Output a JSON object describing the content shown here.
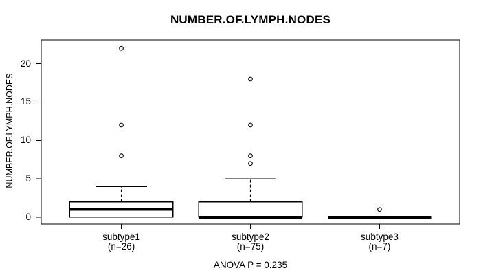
{
  "chart_data": {
    "type": "boxplot",
    "title": "NUMBER.OF.LYMPH.NODES",
    "ylabel": "NUMBER.OF.LYMPH.NODES",
    "annotation": "ANOVA P = 0.235",
    "y_ticks": [
      0,
      5,
      10,
      15,
      20
    ],
    "ylim": [
      -0.9,
      23.1
    ],
    "grid": false,
    "groups": [
      {
        "label": "subtype1",
        "n_label": "(n=26)",
        "n": 26,
        "stats": {
          "whisker_low": 0,
          "q1": 0,
          "median": 1,
          "q3": 2,
          "whisker_high": 4
        },
        "outliers": [
          8,
          12,
          22
        ]
      },
      {
        "label": "subtype2",
        "n_label": "(n=75)",
        "n": 75,
        "stats": {
          "whisker_low": 0,
          "q1": 0,
          "median": 0,
          "q3": 2,
          "whisker_high": 5
        },
        "outliers": [
          7,
          8,
          12,
          18
        ]
      },
      {
        "label": "subtype3",
        "n_label": "(n=7)",
        "n": 7,
        "stats": {
          "whisker_low": 0,
          "q1": 0,
          "median": 0,
          "q3": 0,
          "whisker_high": 0
        },
        "outliers": [
          1
        ]
      }
    ],
    "colors": {
      "stroke": "#000000",
      "box_fill": "#ffffff",
      "background": "#ffffff"
    }
  }
}
